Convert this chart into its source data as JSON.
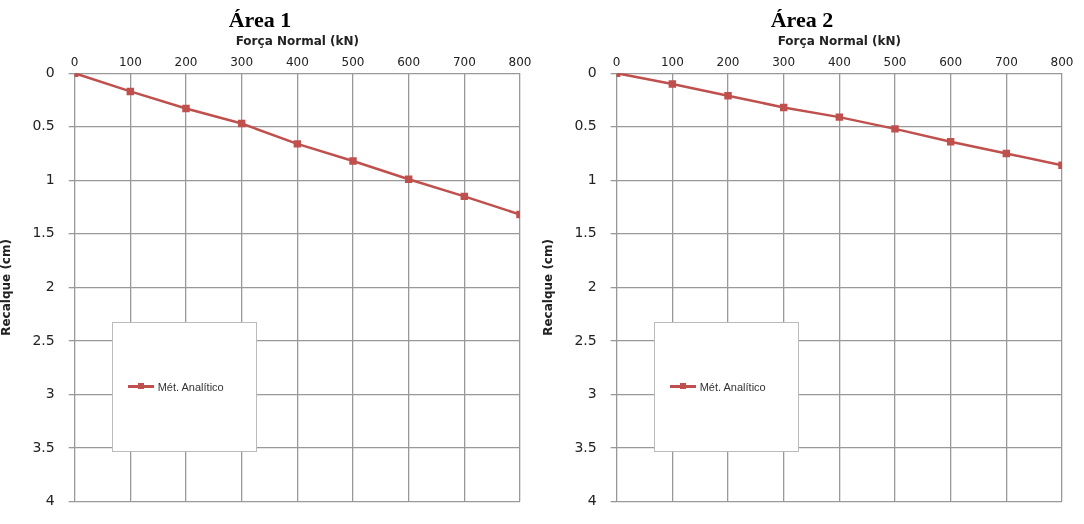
{
  "chart_data": [
    {
      "type": "line",
      "title": "Área 1",
      "xlabel": "Força Normal (kN)",
      "ylabel": "Recalque (cm)",
      "x": [
        0,
        100,
        200,
        300,
        400,
        500,
        600,
        700,
        800
      ],
      "series": [
        {
          "name": "Mét. Analítico",
          "color": "#c0504d",
          "values": [
            0,
            0.17,
            0.33,
            0.47,
            0.66,
            0.82,
            0.99,
            1.15,
            1.32
          ]
        }
      ],
      "xlim": [
        0,
        800
      ],
      "xticks": [
        0,
        100,
        200,
        300,
        400,
        500,
        600,
        700,
        800
      ],
      "ylim": [
        4,
        0
      ],
      "yticks": [
        0,
        0.5,
        1,
        1.5,
        2,
        2.5,
        3,
        3.5,
        4
      ],
      "grid": true,
      "legend": "bottom left",
      "marker": "square",
      "line_style": "solid"
    },
    {
      "type": "line",
      "title": "Área 2",
      "xlabel": "Força Normal (kN)",
      "ylabel": "Recalque (cm)",
      "x": [
        0,
        100,
        200,
        300,
        400,
        500,
        600,
        700,
        800
      ],
      "series": [
        {
          "name": "Mét. Analítico",
          "color": "#c0504d",
          "values": [
            0,
            0.1,
            0.21,
            0.32,
            0.41,
            0.52,
            0.64,
            0.75,
            0.86
          ]
        }
      ],
      "xlim": [
        0,
        800
      ],
      "xticks": [
        0,
        100,
        200,
        300,
        400,
        500,
        600,
        700,
        800
      ],
      "ylim": [
        4,
        0
      ],
      "yticks": [
        0,
        0.5,
        1,
        1.5,
        2,
        2.5,
        3,
        3.5,
        4
      ],
      "grid": true,
      "legend": "bottom left",
      "marker": "square",
      "line_style": "solid"
    }
  ]
}
